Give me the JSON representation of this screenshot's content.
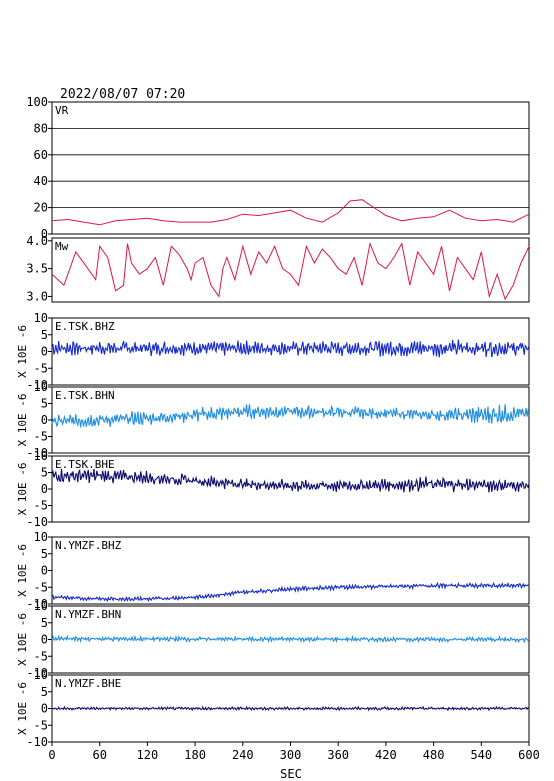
{
  "header": {
    "timestamp": "2022/08/07 07:20"
  },
  "x_axis": {
    "label": "SEC",
    "range": [
      0,
      600
    ],
    "ticks": [
      "0",
      "60",
      "120",
      "180",
      "240",
      "300",
      "360",
      "420",
      "480",
      "540",
      "600"
    ]
  },
  "colors": {
    "red": "#e0144a",
    "blue": "#1428c8",
    "lightblue": "#1e8ce0",
    "navy": "#0a0a6e",
    "grid": "#000000"
  },
  "chart_data": [
    {
      "type": "line",
      "label": "VR",
      "ylim": [
        0,
        100
      ],
      "yticks": [
        "0",
        "20",
        "40",
        "60",
        "80",
        "100"
      ],
      "grid": true,
      "color": "red",
      "x": [
        0,
        20,
        40,
        60,
        80,
        100,
        120,
        140,
        160,
        180,
        200,
        220,
        240,
        260,
        280,
        300,
        320,
        340,
        360,
        375,
        390,
        400,
        420,
        440,
        460,
        480,
        500,
        520,
        540,
        560,
        580,
        600
      ],
      "values": [
        10,
        11,
        9,
        7,
        10,
        11,
        12,
        10,
        9,
        9,
        9,
        11,
        15,
        14,
        16,
        18,
        12,
        9,
        16,
        25,
        26,
        22,
        14,
        10,
        12,
        13,
        18,
        12,
        10,
        11,
        9,
        15
      ]
    },
    {
      "type": "line",
      "label": "Mw",
      "ylim": [
        2.9,
        4.05
      ],
      "yticks": [
        "3.0",
        "3.5",
        "4.0"
      ],
      "grid": false,
      "color": "red",
      "x": [
        0,
        15,
        30,
        45,
        55,
        60,
        70,
        80,
        90,
        95,
        100,
        110,
        120,
        130,
        140,
        150,
        160,
        170,
        175,
        180,
        190,
        200,
        210,
        215,
        220,
        230,
        240,
        250,
        260,
        270,
        280,
        290,
        300,
        310,
        320,
        330,
        340,
        350,
        360,
        370,
        380,
        390,
        400,
        410,
        420,
        430,
        440,
        450,
        460,
        470,
        480,
        490,
        500,
        510,
        520,
        530,
        540,
        550,
        560,
        570,
        580,
        590,
        600
      ],
      "values": [
        3.4,
        3.2,
        3.8,
        3.5,
        3.3,
        3.9,
        3.7,
        3.1,
        3.2,
        3.95,
        3.6,
        3.4,
        3.5,
        3.7,
        3.2,
        3.9,
        3.75,
        3.5,
        3.3,
        3.6,
        3.7,
        3.2,
        3.0,
        3.5,
        3.7,
        3.3,
        3.9,
        3.4,
        3.8,
        3.6,
        3.9,
        3.5,
        3.4,
        3.2,
        3.9,
        3.6,
        3.85,
        3.7,
        3.5,
        3.4,
        3.7,
        3.2,
        3.95,
        3.6,
        3.5,
        3.7,
        3.95,
        3.2,
        3.8,
        3.6,
        3.4,
        3.9,
        3.1,
        3.7,
        3.5,
        3.3,
        3.8,
        3.0,
        3.4,
        2.95,
        3.2,
        3.6,
        3.9
      ]
    },
    {
      "type": "line",
      "label": "E.TSK.BHZ",
      "ylim": [
        -10,
        10
      ],
      "yticks": [
        "-10",
        "-5",
        "0",
        "5",
        "10"
      ],
      "ylabel": "X 10E -6",
      "grid": false,
      "color": "blue",
      "trend_x": [
        0,
        600
      ],
      "trend": [
        1,
        1
      ],
      "amplitude": [
        [
          0,
          2
        ],
        [
          300,
          2
        ],
        [
          540,
          2.5
        ],
        [
          600,
          2
        ]
      ]
    },
    {
      "type": "line",
      "label": "E.TSK.BHN",
      "ylim": [
        -10,
        10
      ],
      "yticks": [
        "-10",
        "-5",
        "0",
        "5",
        "10"
      ],
      "ylabel": "X 10E -6",
      "grid": false,
      "color": "lightblue",
      "trend_x": [
        0,
        60,
        120,
        180,
        240,
        300,
        360,
        420,
        480,
        540,
        600
      ],
      "trend": [
        -0.5,
        0,
        0.5,
        1.5,
        2.5,
        2.5,
        2.3,
        2,
        1.5,
        1.5,
        2
      ],
      "amplitude": [
        [
          0,
          2
        ],
        [
          240,
          2
        ],
        [
          480,
          1.5
        ],
        [
          560,
          3
        ],
        [
          600,
          1.5
        ]
      ]
    },
    {
      "type": "line",
      "label": "E.TSK.BHE",
      "ylim": [
        -10,
        10
      ],
      "yticks": [
        "-10",
        "-5",
        "0",
        "5",
        "10"
      ],
      "ylabel": "X 10E -6",
      "grid": false,
      "color": "navy",
      "trend_x": [
        0,
        60,
        120,
        180,
        240,
        300,
        360,
        420,
        480,
        540,
        600
      ],
      "trend": [
        4,
        4,
        3.5,
        2.5,
        1.5,
        1,
        1,
        1.2,
        1.5,
        1.2,
        1
      ],
      "amplitude": [
        [
          0,
          2
        ],
        [
          120,
          2
        ],
        [
          240,
          1.5
        ],
        [
          420,
          2
        ],
        [
          540,
          2
        ],
        [
          600,
          1.5
        ]
      ]
    },
    {
      "type": "line",
      "label": "N.YMZF.BHZ",
      "ylim": [
        -10,
        10
      ],
      "yticks": [
        "-10",
        "-5",
        "0",
        "5",
        "10"
      ],
      "ylabel": "X 10E -6",
      "grid": false,
      "color": "blue",
      "trend_x": [
        0,
        60,
        120,
        180,
        240,
        300,
        360,
        420,
        480,
        540,
        600
      ],
      "trend": [
        -8,
        -8.5,
        -8.5,
        -8,
        -6.5,
        -5.5,
        -5,
        -4.8,
        -4.5,
        -4.5,
        -4.5
      ],
      "amplitude": [
        [
          0,
          0.5
        ],
        [
          300,
          0.6
        ],
        [
          600,
          0.6
        ]
      ]
    },
    {
      "type": "line",
      "label": "N.YMZF.BHN",
      "ylim": [
        -10,
        10
      ],
      "yticks": [
        "-10",
        "-5",
        "0",
        "5",
        "10"
      ],
      "ylabel": "X 10E -6",
      "grid": false,
      "color": "lightblue",
      "trend_x": [
        0,
        600
      ],
      "trend": [
        0.2,
        0
      ],
      "amplitude": [
        [
          0,
          0.6
        ],
        [
          600,
          0.6
        ]
      ]
    },
    {
      "type": "line",
      "label": "N.YMZF.BHE",
      "ylim": [
        -10,
        10
      ],
      "yticks": [
        "-10",
        "-5",
        "0",
        "5",
        "10"
      ],
      "ylabel": "X 10E -6",
      "grid": false,
      "color": "navy",
      "trend_x": [
        0,
        600
      ],
      "trend": [
        0,
        0
      ],
      "amplitude": [
        [
          0,
          0.4
        ],
        [
          600,
          0.4
        ]
      ]
    }
  ]
}
